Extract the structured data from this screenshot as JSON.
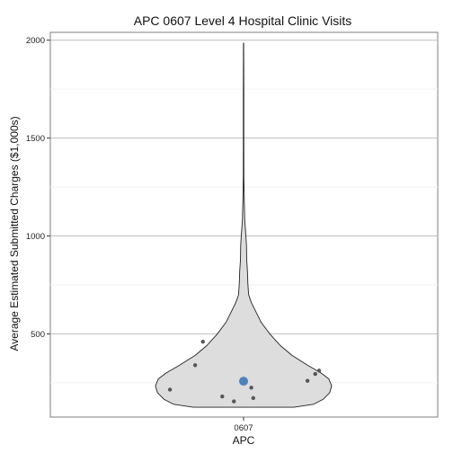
{
  "chart_data": {
    "type": "violin",
    "title": "APC 0607 Level 4 Hospital Clinic Visits",
    "xlabel": "APC",
    "ylabel": "Average Estimated Submitted Charges ($1,000s)",
    "categories": [
      "0607"
    ],
    "ylim": [
      75,
      2040
    ],
    "y_ticks": [
      500,
      1000,
      1500,
      2000
    ],
    "grid": true,
    "violin": {
      "fill": "#dddddd",
      "stroke": "#222222",
      "profile": [
        {
          "y": 125,
          "halfwidth": 0.26
        },
        {
          "y": 140,
          "halfwidth": 0.36
        },
        {
          "y": 165,
          "halfwidth": 0.41
        },
        {
          "y": 200,
          "halfwidth": 0.445
        },
        {
          "y": 235,
          "halfwidth": 0.455
        },
        {
          "y": 270,
          "halfwidth": 0.44
        },
        {
          "y": 300,
          "halfwidth": 0.4
        },
        {
          "y": 340,
          "halfwidth": 0.33
        },
        {
          "y": 390,
          "halfwidth": 0.25
        },
        {
          "y": 440,
          "halfwidth": 0.19
        },
        {
          "y": 500,
          "halfwidth": 0.135
        },
        {
          "y": 560,
          "halfwidth": 0.09
        },
        {
          "y": 620,
          "halfwidth": 0.06
        },
        {
          "y": 660,
          "halfwidth": 0.04
        },
        {
          "y": 700,
          "halfwidth": 0.026
        },
        {
          "y": 760,
          "halfwidth": 0.022
        },
        {
          "y": 820,
          "halfwidth": 0.02
        },
        {
          "y": 880,
          "halfwidth": 0.016
        },
        {
          "y": 950,
          "halfwidth": 0.015
        },
        {
          "y": 1000,
          "halfwidth": 0.012
        },
        {
          "y": 1080,
          "halfwidth": 0.006
        },
        {
          "y": 1200,
          "halfwidth": 0.003
        },
        {
          "y": 1300,
          "halfwidth": 0.0015
        },
        {
          "y": 1500,
          "halfwidth": 0.0012
        },
        {
          "y": 1750,
          "halfwidth": 0.0012
        },
        {
          "y": 1985,
          "halfwidth": 0.0006
        }
      ]
    },
    "points": [
      {
        "x": -0.38,
        "y": 215
      },
      {
        "x": -0.25,
        "y": 340
      },
      {
        "x": -0.21,
        "y": 460
      },
      {
        "x": -0.11,
        "y": 180
      },
      {
        "x": -0.05,
        "y": 155
      },
      {
        "x": 0.04,
        "y": 225
      },
      {
        "x": 0.05,
        "y": 172
      },
      {
        "x": 0.33,
        "y": 260
      },
      {
        "x": 0.37,
        "y": 295
      },
      {
        "x": 0.39,
        "y": 312
      }
    ],
    "point_color": "#555555",
    "mean": {
      "x": 0,
      "y": 258
    },
    "mean_color": "#4f81bd"
  }
}
